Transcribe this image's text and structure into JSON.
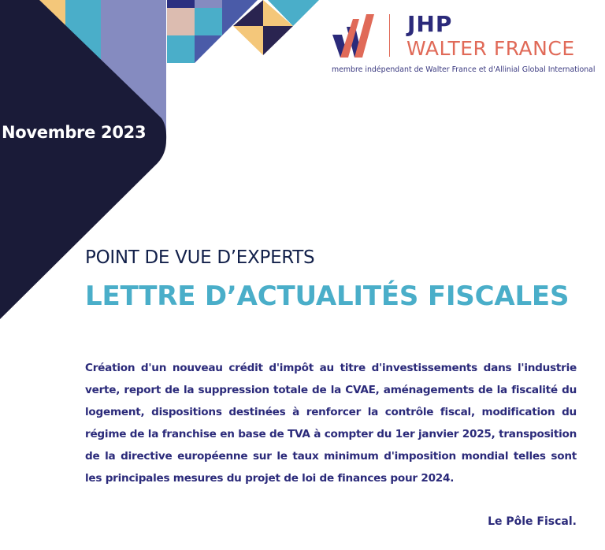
{
  "date": "Novembre 2023",
  "logo": {
    "line1": "JHP",
    "line2": "WALTER FRANCE",
    "tagline": "membre indépendant de Walter France et d'Allinial Global International"
  },
  "subtitle": "POINT DE VUE D’EXPERTS",
  "title": "LETTRE D’ACTUALITÉS FISCALES",
  "body": "Création d'un nouveau crédit d'impôt au titre d'investissements dans l'industrie verte, report de la suppression totale de la CVAE, aménagements de la fiscalité du logement, dispositions destinées à renforcer la contrôle fiscal, modification du régime de la franchise en base de TVA à compter du 1er janvier 2025, transposition de la directive européenne sur le taux minimum d'imposition mondial telles sont les principales mesures du projet de loi de finances pour 2024.",
  "signature": "Le Pôle Fiscal.",
  "colors": {
    "navy": "#1a1b38",
    "teal": "#4aaec9",
    "lavender": "#858bc0",
    "yellow": "#f4c77a",
    "coral": "#e06a58",
    "text": "#2b2a7a"
  }
}
